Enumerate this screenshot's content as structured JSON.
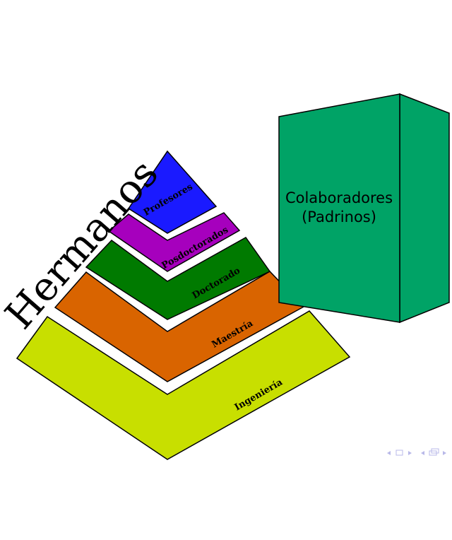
{
  "diagram": {
    "side_label": "Hermanos",
    "pyramid_layers": [
      {
        "id": "profesores",
        "label": "Profesores",
        "color": "#1a1aff"
      },
      {
        "id": "posdoctorados",
        "label": "Posdoctorados",
        "color": "#a600bd"
      },
      {
        "id": "doctorado",
        "label": "Doctorado",
        "color": "#007a00"
      },
      {
        "id": "maestria",
        "label": "Maestría",
        "color": "#d96400"
      },
      {
        "id": "ingenieria",
        "label": "Ingeniería",
        "color": "#c8df00"
      }
    ],
    "box": {
      "line1": "Colaboradores",
      "line2": "(Padrinos)",
      "front_color": "#00a366",
      "side_color": "#00a366"
    }
  }
}
